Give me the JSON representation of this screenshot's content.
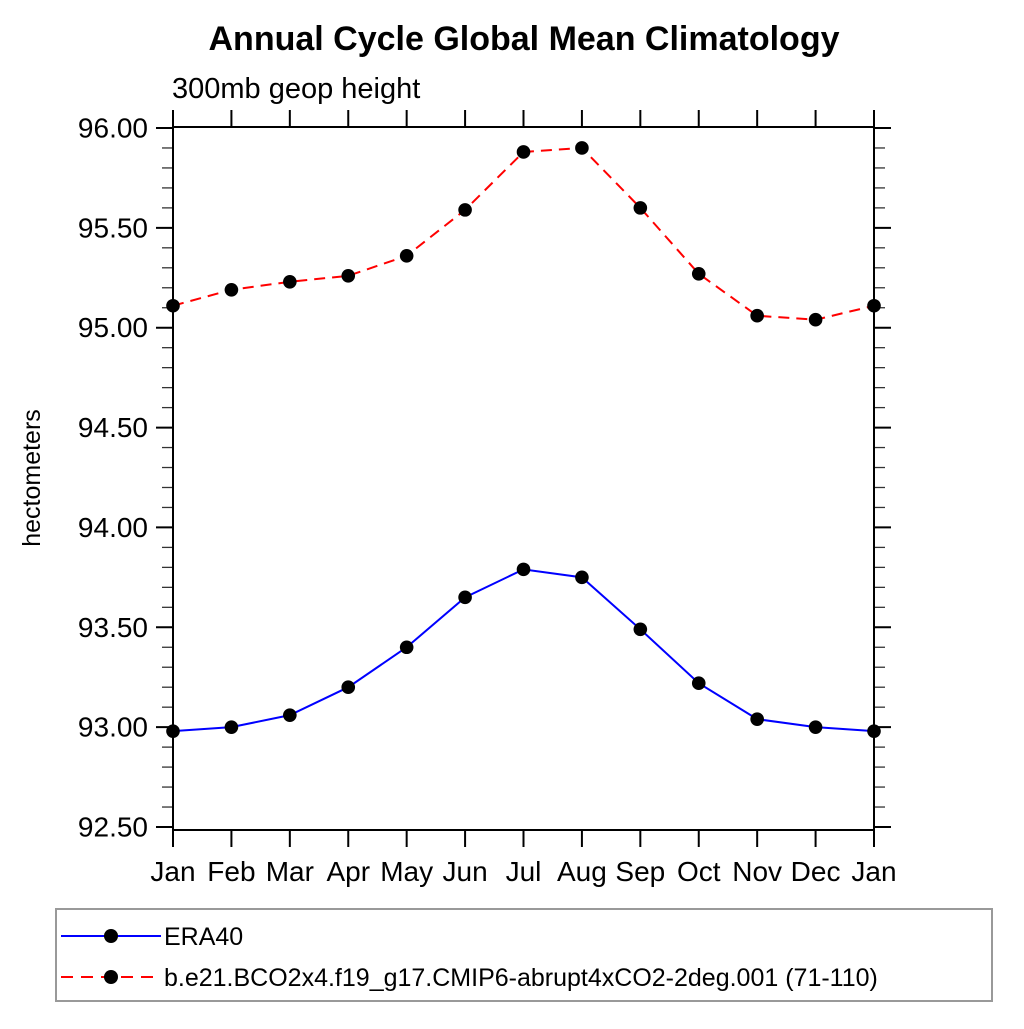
{
  "chart_data": {
    "type": "line",
    "title": "Annual Cycle Global Mean Climatology",
    "subtitle": "300mb geop height",
    "ylabel": "hectometers",
    "categories": [
      "Jan",
      "Feb",
      "Mar",
      "Apr",
      "May",
      "Jun",
      "Jul",
      "Aug",
      "Sep",
      "Oct",
      "Nov",
      "Dec",
      "Jan"
    ],
    "ylim": [
      92.485,
      96.005
    ],
    "y_major_ticks": [
      92.5,
      93.0,
      93.5,
      94.0,
      94.5,
      95.0,
      95.5,
      96.0
    ],
    "y_major_step": 0.5,
    "y_minor_step": 0.1,
    "y_tick_decimals": 2,
    "grid": false,
    "legend_position": "bottom-left-box",
    "axis_color": "#000000",
    "marker_shape": "filled-circle",
    "series": [
      {
        "name": "ERA40",
        "color": "#0000ff",
        "line_style": "solid",
        "marker_color": "#000000",
        "values": [
          92.98,
          93.0,
          93.06,
          93.2,
          93.4,
          93.65,
          93.79,
          93.75,
          93.49,
          93.22,
          93.04,
          93.0,
          92.98
        ]
      },
      {
        "name": "b.e21.BCO2x4.f19_g17.CMIP6-abrupt4xCO2-2deg.001 (71-110)",
        "color": "#ff0000",
        "line_style": "dashed",
        "marker_color": "#000000",
        "values": [
          95.11,
          95.19,
          95.23,
          95.26,
          95.36,
          95.59,
          95.88,
          95.9,
          95.6,
          95.27,
          95.06,
          95.04,
          95.11
        ]
      }
    ]
  }
}
